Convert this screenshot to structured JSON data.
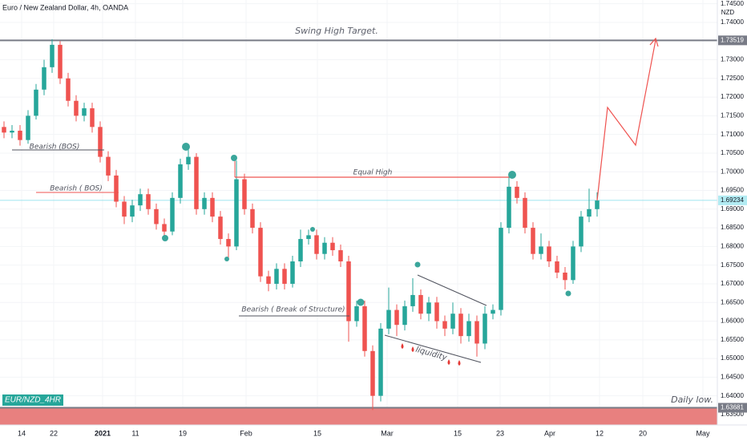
{
  "header": "Euro / New Zealand Dollar, 4h, OANDA",
  "chart_data": {
    "type": "candlestick",
    "currency": "NZD",
    "up_color": "#26a69a",
    "down_color": "#ef5350",
    "xlim": [
      0,
      179
    ],
    "xticks": [
      {
        "value": 5.4,
        "label": "14"
      },
      {
        "value": 13.4,
        "label": "22"
      },
      {
        "value": 25.6,
        "label": "2021"
      },
      {
        "value": 33.8,
        "label": "11"
      },
      {
        "value": 45.6,
        "label": "19"
      },
      {
        "value": 61.4,
        "label": "Feb"
      },
      {
        "value": 79.2,
        "label": "15"
      },
      {
        "value": 96.6,
        "label": "Mar"
      },
      {
        "value": 114.2,
        "label": "15"
      },
      {
        "value": 124.8,
        "label": "23"
      },
      {
        "value": 137.2,
        "label": "Apr"
      },
      {
        "value": 149.6,
        "label": "12"
      },
      {
        "value": 160.4,
        "label": "20"
      },
      {
        "value": 175.4,
        "label": "May"
      }
    ],
    "ylim": [
      1.6322,
      1.746
    ],
    "yticks": [
      {
        "value": 1.745,
        "label": "1.74500"
      },
      {
        "value": 1.74,
        "label": "1.74000"
      },
      {
        "value": 1.73,
        "label": "1.73000"
      },
      {
        "value": 1.725,
        "label": "1.72500"
      },
      {
        "value": 1.72,
        "label": "1.72000"
      },
      {
        "value": 1.715,
        "label": "1.71500"
      },
      {
        "value": 1.71,
        "label": "1.71000"
      },
      {
        "value": 1.705,
        "label": "1.70500"
      },
      {
        "value": 1.7,
        "label": "1.70000"
      },
      {
        "value": 1.695,
        "label": "1.69500"
      },
      {
        "value": 1.69,
        "label": "1.69000"
      },
      {
        "value": 1.685,
        "label": "1.68500"
      },
      {
        "value": 1.68,
        "label": "1.68000"
      },
      {
        "value": 1.675,
        "label": "1.67500"
      },
      {
        "value": 1.67,
        "label": "1.67000"
      },
      {
        "value": 1.665,
        "label": "1.66500"
      },
      {
        "value": 1.66,
        "label": "1.66000"
      },
      {
        "value": 1.655,
        "label": "1.65500"
      },
      {
        "value": 1.65,
        "label": "1.65000"
      },
      {
        "value": 1.645,
        "label": "1.64500"
      },
      {
        "value": 1.64,
        "label": "1.64000"
      },
      {
        "value": 1.635,
        "label": "1.63500"
      }
    ],
    "levels": [
      {
        "value": 1.73519,
        "color": "#787b86"
      },
      {
        "value": 1.69234,
        "color": "#b2ebf2"
      },
      {
        "value": 1.63681,
        "color": "#787b86"
      }
    ],
    "x": [
      1,
      3,
      5,
      7,
      9,
      11,
      13,
      15,
      17,
      19,
      21,
      23,
      25,
      27,
      29,
      31,
      33,
      35,
      37,
      39,
      41,
      43,
      45,
      47,
      49,
      51,
      53,
      55,
      57,
      59,
      61,
      63,
      65,
      67,
      69,
      71,
      73,
      75,
      77,
      79,
      81,
      83,
      85,
      87,
      89,
      91,
      93,
      95,
      97,
      99,
      101,
      103,
      105,
      107,
      109,
      111,
      113,
      115,
      117,
      119,
      121,
      123,
      125,
      127,
      129,
      131,
      133,
      135,
      137,
      139,
      141,
      143,
      145,
      147,
      149
    ],
    "open": [
      1.712,
      1.7105,
      1.711,
      1.7085,
      1.715,
      1.722,
      1.728,
      1.734,
      1.725,
      1.719,
      1.715,
      1.717,
      1.712,
      1.704,
      1.699,
      1.692,
      1.688,
      1.691,
      1.694,
      1.69,
      1.686,
      1.684,
      1.693,
      1.702,
      1.704,
      1.69,
      1.693,
      1.688,
      1.682,
      1.68,
      1.698,
      1.69,
      1.685,
      1.672,
      1.67,
      1.674,
      1.67,
      1.676,
      1.682,
      1.683,
      1.678,
      1.681,
      1.679,
      1.676,
      1.66,
      1.664,
      1.652,
      1.64,
      1.658,
      1.663,
      1.659,
      1.664,
      1.667,
      1.662,
      1.665,
      1.66,
      1.658,
      1.662,
      1.656,
      1.66,
      1.654,
      1.662,
      1.663,
      1.685,
      1.696,
      1.693,
      1.685,
      1.678,
      1.68,
      1.676,
      1.673,
      1.671,
      1.68,
      1.688,
      1.69
    ],
    "high": [
      1.7135,
      1.7125,
      1.7125,
      1.7165,
      1.7235,
      1.73,
      1.7355,
      1.735,
      1.7265,
      1.7205,
      1.7185,
      1.7185,
      1.7135,
      1.7055,
      1.7005,
      1.6935,
      1.6925,
      1.6955,
      1.6955,
      1.6915,
      1.6875,
      1.6945,
      1.7035,
      1.7065,
      1.705,
      1.6945,
      1.6945,
      1.6895,
      1.6835,
      1.703,
      1.6995,
      1.6915,
      1.6865,
      1.6735,
      1.6755,
      1.6755,
      1.6775,
      1.6845,
      1.6845,
      1.6845,
      1.6825,
      1.6825,
      1.6805,
      1.6775,
      1.6655,
      1.6655,
      1.6535,
      1.6595,
      1.669,
      1.6645,
      1.6655,
      1.6715,
      1.6685,
      1.6665,
      1.6665,
      1.6615,
      1.665,
      1.6635,
      1.662,
      1.6615,
      1.664,
      1.6645,
      1.6865,
      1.699,
      1.6975,
      1.6945,
      1.6865,
      1.6835,
      1.6815,
      1.6775,
      1.6745,
      1.6815,
      1.6895,
      1.6955,
      1.6945
    ],
    "low": [
      1.709,
      1.709,
      1.707,
      1.7075,
      1.714,
      1.7205,
      1.7265,
      1.7235,
      1.7175,
      1.7135,
      1.7135,
      1.7105,
      1.7025,
      1.6975,
      1.6905,
      1.686,
      1.6865,
      1.6895,
      1.6885,
      1.6845,
      1.6815,
      1.683,
      1.6915,
      1.7005,
      1.6885,
      1.6885,
      1.6865,
      1.6805,
      1.677,
      1.679,
      1.6885,
      1.6835,
      1.6705,
      1.668,
      1.6685,
      1.6685,
      1.669,
      1.6745,
      1.6805,
      1.6765,
      1.6765,
      1.6775,
      1.6745,
      1.6545,
      1.6585,
      1.6505,
      1.6362,
      1.6385,
      1.6565,
      1.656,
      1.6575,
      1.6625,
      1.6605,
      1.66,
      1.658,
      1.656,
      1.6565,
      1.654,
      1.6545,
      1.6505,
      1.6525,
      1.6605,
      1.6615,
      1.6835,
      1.6915,
      1.6835,
      1.6765,
      1.6765,
      1.6745,
      1.6715,
      1.6685,
      1.67,
      1.6785,
      1.6865,
      1.688
    ],
    "close": [
      1.7105,
      1.711,
      1.7085,
      1.715,
      1.722,
      1.728,
      1.734,
      1.725,
      1.719,
      1.715,
      1.717,
      1.712,
      1.704,
      1.699,
      1.692,
      1.688,
      1.691,
      1.694,
      1.69,
      1.686,
      1.684,
      1.693,
      1.702,
      1.704,
      1.69,
      1.693,
      1.688,
      1.682,
      1.68,
      1.698,
      1.69,
      1.685,
      1.672,
      1.67,
      1.674,
      1.67,
      1.676,
      1.682,
      1.683,
      1.678,
      1.681,
      1.679,
      1.676,
      1.66,
      1.664,
      1.652,
      1.64,
      1.658,
      1.663,
      1.659,
      1.664,
      1.667,
      1.662,
      1.665,
      1.66,
      1.658,
      1.662,
      1.656,
      1.66,
      1.654,
      1.662,
      1.663,
      1.685,
      1.696,
      1.693,
      1.685,
      1.678,
      1.68,
      1.676,
      1.673,
      1.671,
      1.68,
      1.688,
      1.69,
      1.6923
    ],
    "annotations": [
      "Swing High Target.",
      "Bearish (BOS)",
      "Bearish ( BOS)",
      "Equal High",
      "Bearish ( Break of Structure)",
      "liquidity",
      "EUR/NZD_4HR",
      "Daily low."
    ]
  }
}
